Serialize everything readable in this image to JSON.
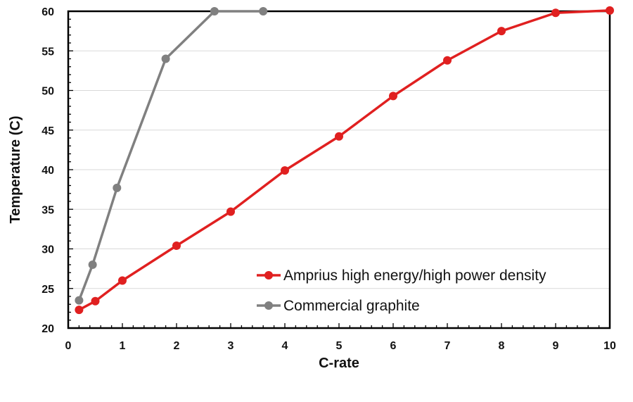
{
  "chart_data": {
    "type": "line",
    "title": "",
    "xlabel": "C-rate",
    "ylabel": "Temperature (C)",
    "xlim": [
      0,
      10
    ],
    "ylim": [
      20,
      60
    ],
    "xticks": [
      0,
      1,
      2,
      3,
      4,
      5,
      6,
      7,
      8,
      9,
      10
    ],
    "yticks": [
      20,
      25,
      30,
      35,
      40,
      45,
      50,
      55,
      60
    ],
    "grid": "horizontal",
    "legend_position": "bottom-right",
    "series": [
      {
        "name": "Amprius high energy/high power density",
        "color": "#e02020",
        "points": [
          {
            "x": 0.2,
            "y": 22.3
          },
          {
            "x": 0.5,
            "y": 23.4
          },
          {
            "x": 1,
            "y": 26.0
          },
          {
            "x": 2,
            "y": 30.4
          },
          {
            "x": 3,
            "y": 34.7
          },
          {
            "x": 4,
            "y": 39.9
          },
          {
            "x": 5,
            "y": 44.2
          },
          {
            "x": 6,
            "y": 49.3
          },
          {
            "x": 7,
            "y": 53.8
          },
          {
            "x": 8,
            "y": 57.5
          },
          {
            "x": 9,
            "y": 59.8
          },
          {
            "x": 10,
            "y": 60.1
          }
        ]
      },
      {
        "name": "Commercial graphite",
        "color": "#808080",
        "points": [
          {
            "x": 0.2,
            "y": 23.5
          },
          {
            "x": 0.45,
            "y": 28.0
          },
          {
            "x": 0.9,
            "y": 37.7
          },
          {
            "x": 1.8,
            "y": 54.0
          },
          {
            "x": 2.7,
            "y": 60.0
          },
          {
            "x": 3.6,
            "y": 60.0
          }
        ]
      }
    ]
  }
}
